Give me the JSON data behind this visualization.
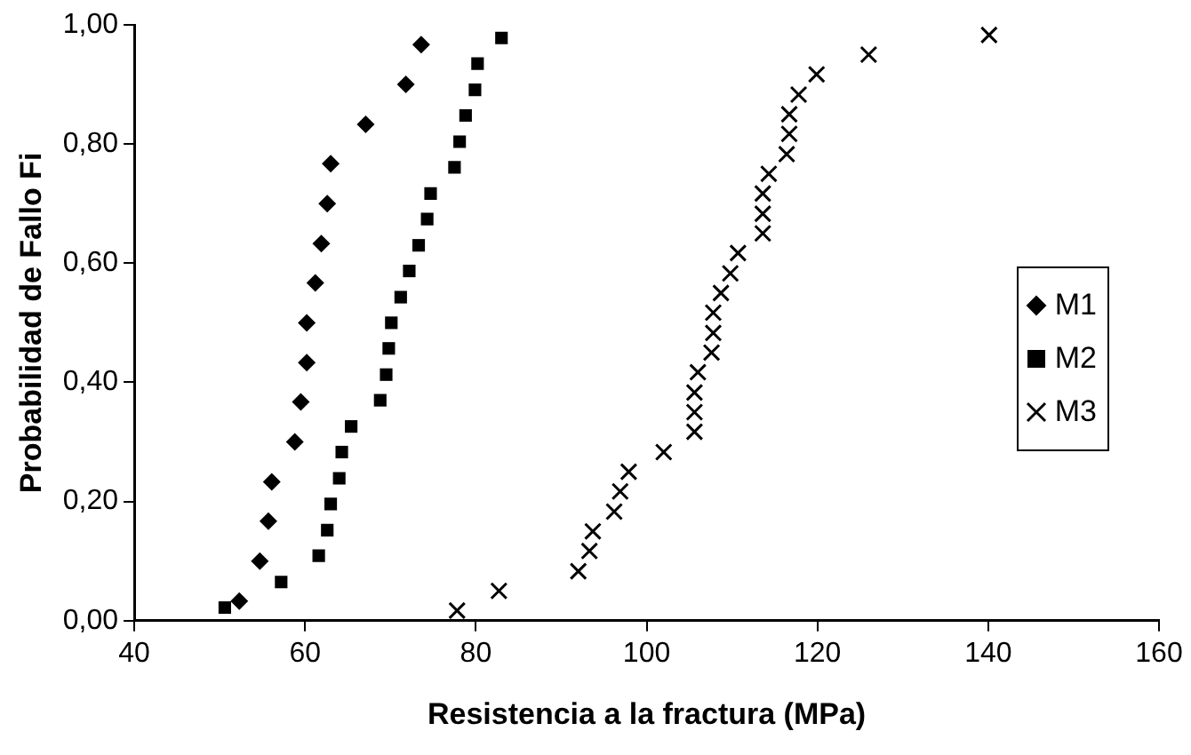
{
  "chart_data": {
    "type": "scatter",
    "xlabel": "Resistencia a la fractura (MPa)",
    "ylabel": "Probabilidad de Fallo Fi",
    "xlim": [
      40,
      160
    ],
    "xticks": [
      40,
      60,
      80,
      100,
      120,
      140,
      160
    ],
    "ylim": [
      0,
      1
    ],
    "yticks": [
      {
        "value": 0,
        "label": "0,00"
      },
      {
        "value": 0.2,
        "label": "0,20"
      },
      {
        "value": 0.4,
        "label": "0,40"
      },
      {
        "value": 0.6,
        "label": "0,60"
      },
      {
        "value": 0.8,
        "label": "0,80"
      },
      {
        "value": 1,
        "label": "1,00"
      }
    ],
    "grid": false,
    "legend": "right",
    "series": [
      {
        "name": "M1",
        "color": "#000000",
        "marker": "diamond",
        "x": [
          52.3,
          54.7,
          55.7,
          56.1,
          58.8,
          59.5,
          60.2,
          60.2,
          61.2,
          61.9,
          62.6,
          63.0,
          67.1,
          71.8,
          73.6
        ],
        "values": [
          0.033,
          0.1,
          0.167,
          0.233,
          0.3,
          0.367,
          0.433,
          0.5,
          0.567,
          0.633,
          0.7,
          0.767,
          0.833,
          0.9,
          0.967
        ]
      },
      {
        "name": "M2",
        "color": "#000000",
        "marker": "square",
        "x": [
          50.6,
          57.2,
          61.6,
          62.6,
          63.0,
          64.0,
          64.3,
          65.4,
          68.8,
          69.5,
          69.8,
          70.1,
          71.2,
          72.2,
          73.3,
          74.3,
          74.7,
          77.5,
          78.1,
          78.8,
          79.9,
          80.2,
          83.0
        ],
        "values": [
          0.022,
          0.065,
          0.109,
          0.152,
          0.196,
          0.239,
          0.283,
          0.326,
          0.37,
          0.413,
          0.457,
          0.5,
          0.543,
          0.587,
          0.63,
          0.674,
          0.717,
          0.761,
          0.804,
          0.848,
          0.891,
          0.935,
          0.978
        ]
      },
      {
        "name": "M3",
        "color": "#000000",
        "marker": "cross",
        "x": [
          77.8,
          82.7,
          92.0,
          93.3,
          93.7,
          96.2,
          96.9,
          97.9,
          102.0,
          105.6,
          105.6,
          105.6,
          106.0,
          107.6,
          107.8,
          107.8,
          108.7,
          109.8,
          110.7,
          113.6,
          113.6,
          113.6,
          114.3,
          116.4,
          116.7,
          116.7,
          117.8,
          119.9,
          126.0,
          140.1
        ],
        "values": [
          0.017,
          0.05,
          0.083,
          0.117,
          0.15,
          0.183,
          0.217,
          0.25,
          0.283,
          0.317,
          0.35,
          0.383,
          0.417,
          0.45,
          0.483,
          0.517,
          0.55,
          0.583,
          0.617,
          0.65,
          0.683,
          0.717,
          0.75,
          0.783,
          0.817,
          0.85,
          0.883,
          0.917,
          0.95,
          0.983
        ]
      }
    ]
  }
}
